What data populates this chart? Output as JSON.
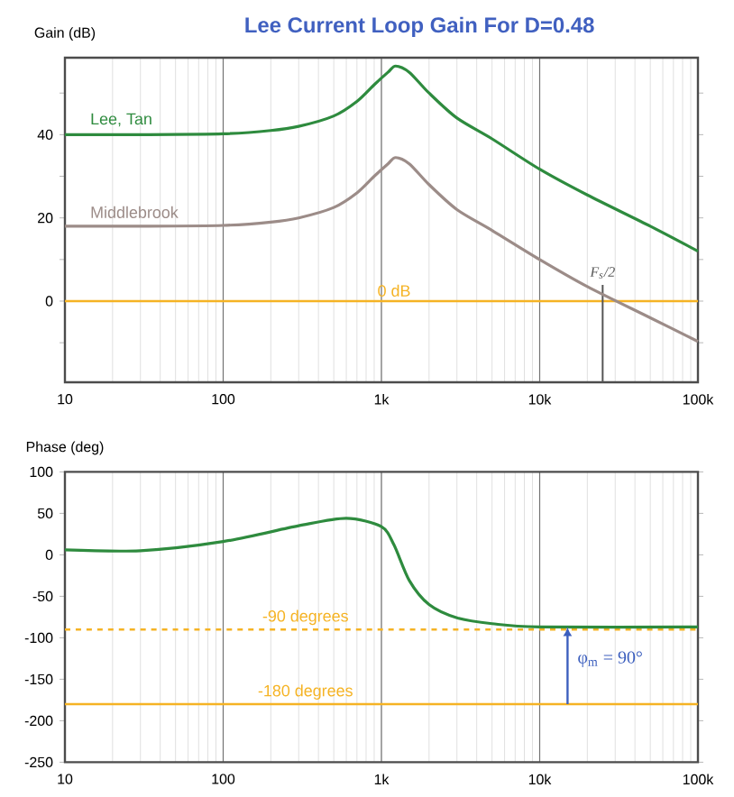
{
  "chart_data": [
    {
      "type": "line",
      "title": "Lee Current Loop Gain For D=0.48",
      "ylabel": "Gain (dB)",
      "log": "x",
      "grid": "x",
      "legend": false,
      "x": [
        10,
        30,
        100,
        200,
        300,
        500,
        700,
        900,
        1100,
        1230,
        1500,
        2000,
        3000,
        5000,
        10000,
        20000,
        50000,
        100000
      ],
      "series": [
        {
          "name": "Lee, Tan",
          "color": "#2e8b3e",
          "values": [
            40,
            40,
            40.2,
            41,
            42,
            44.5,
            48,
            52,
            55,
            56.5,
            55,
            50,
            44,
            39,
            31.7,
            25.5,
            18,
            12
          ]
        },
        {
          "name": "Middlebrook",
          "color": "#9c8c88",
          "values": [
            18,
            18,
            18.2,
            19,
            20,
            22.5,
            26,
            30,
            33,
            34.5,
            33,
            28,
            22,
            17,
            10,
            3.5,
            -4,
            -9.7
          ]
        }
      ],
      "xlim": [
        10,
        100000
      ],
      "ylim": [
        -19.5,
        58.5
      ],
      "xticks": [
        10,
        100,
        {
          "value": 1000,
          "label": "1k"
        },
        {
          "value": 10000,
          "label": "10k"
        },
        {
          "value": 100000,
          "label": "100k"
        }
      ],
      "yticks": [
        {
          "value": -10,
          "label": null
        },
        0,
        {
          "value": 10,
          "label": null
        },
        20,
        {
          "value": 30,
          "label": null
        },
        40,
        {
          "value": 50,
          "label": null
        }
      ],
      "ref_lines": [
        {
          "axis": "y",
          "value": 0,
          "label": "0 dB",
          "color": "#f5b324"
        },
        {
          "axis": "x",
          "value": 25000,
          "label": "F$_{s}$/2",
          "color": "#555555"
        }
      ]
    },
    {
      "type": "line",
      "ylabel": "Phase (deg)",
      "log": "x",
      "grid": "x",
      "legend": false,
      "x": [
        10,
        30,
        100,
        300,
        600,
        1000,
        1200,
        1500,
        2000,
        3000,
        5000,
        10000,
        100000
      ],
      "series": [
        {
          "color": "#2e8b3e",
          "values": [
            6,
            5,
            16,
            35,
            44,
            34,
            12,
            -31,
            -60,
            -76,
            -83,
            -87,
            -87
          ]
        }
      ],
      "xlim": [
        10,
        100000
      ],
      "ylim": [
        -250,
        100
      ],
      "xticks": [
        10,
        100,
        {
          "value": 1000,
          "label": "1k"
        },
        {
          "value": 10000,
          "label": "10k"
        },
        {
          "value": 100000,
          "label": "100k"
        }
      ],
      "yticks": [
        -250,
        -200,
        -150,
        -100,
        -50,
        0,
        50,
        100
      ],
      "ref_lines": [
        {
          "axis": "y",
          "value": -90,
          "label": "-90 degrees",
          "color": "#f5b324",
          "line_style": "dashed"
        },
        {
          "axis": "y",
          "value": -180,
          "label": "-180 degrees",
          "color": "#f5b324"
        }
      ],
      "annotations": [
        {
          "text": "φ$_{m}$ = 90°",
          "x": 15000,
          "y": -87
        }
      ]
    }
  ]
}
